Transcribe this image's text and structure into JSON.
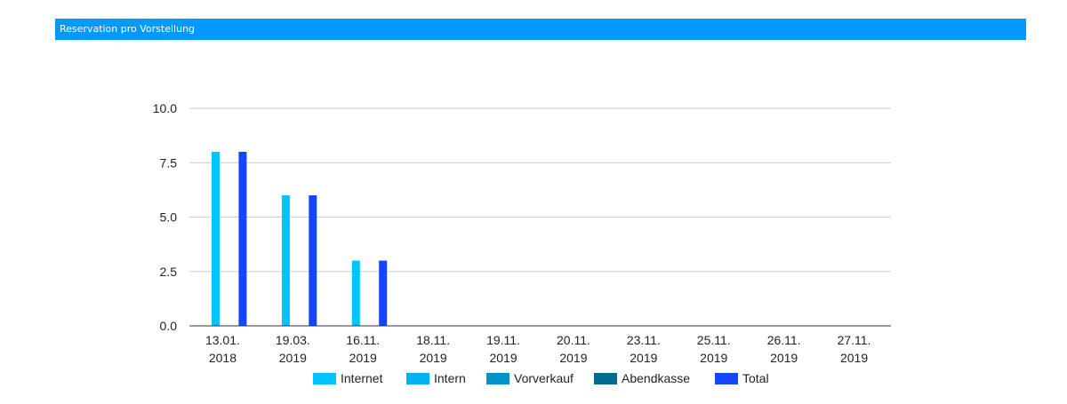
{
  "panel": {
    "title": "Reservation pro Vorstellung"
  },
  "chart_data": {
    "type": "bar",
    "title": "",
    "xlabel": "",
    "ylabel": "",
    "ylim": [
      0,
      10
    ],
    "yticks": [
      "0.0",
      "2.5",
      "5.0",
      "7.5",
      "10.0"
    ],
    "ytick_values": [
      0,
      2.5,
      5,
      7.5,
      10
    ],
    "grid": true,
    "legend_position": "bottom",
    "categories": [
      [
        "13.01.",
        "2018"
      ],
      [
        "19.03.",
        "2019"
      ],
      [
        "16.11.",
        "2019"
      ],
      [
        "18.11.",
        "2019"
      ],
      [
        "19.11.",
        "2019"
      ],
      [
        "20.11.",
        "2019"
      ],
      [
        "23.11.",
        "2019"
      ],
      [
        "25.11.",
        "2019"
      ],
      [
        "26.11.",
        "2019"
      ],
      [
        "27.11.",
        "2019"
      ]
    ],
    "series": [
      {
        "name": "Internet",
        "color": "#00c3ff",
        "values": [
          8,
          6,
          3,
          0,
          0,
          0,
          0,
          0,
          0,
          0
        ]
      },
      {
        "name": "Intern",
        "color": "#00b3f0",
        "values": [
          0,
          0,
          0,
          0,
          0,
          0,
          0,
          0,
          0,
          0
        ]
      },
      {
        "name": "Vorverkauf",
        "color": "#0093c8",
        "values": [
          0,
          0,
          0,
          0,
          0,
          0,
          0,
          0,
          0,
          0
        ]
      },
      {
        "name": "Abendkasse",
        "color": "#006b8f",
        "values": [
          0,
          0,
          0,
          0,
          0,
          0,
          0,
          0,
          0,
          0
        ]
      },
      {
        "name": "Total",
        "color": "#1346ff",
        "values": [
          8,
          6,
          3,
          0,
          0,
          0,
          0,
          0,
          0,
          0
        ]
      }
    ]
  }
}
